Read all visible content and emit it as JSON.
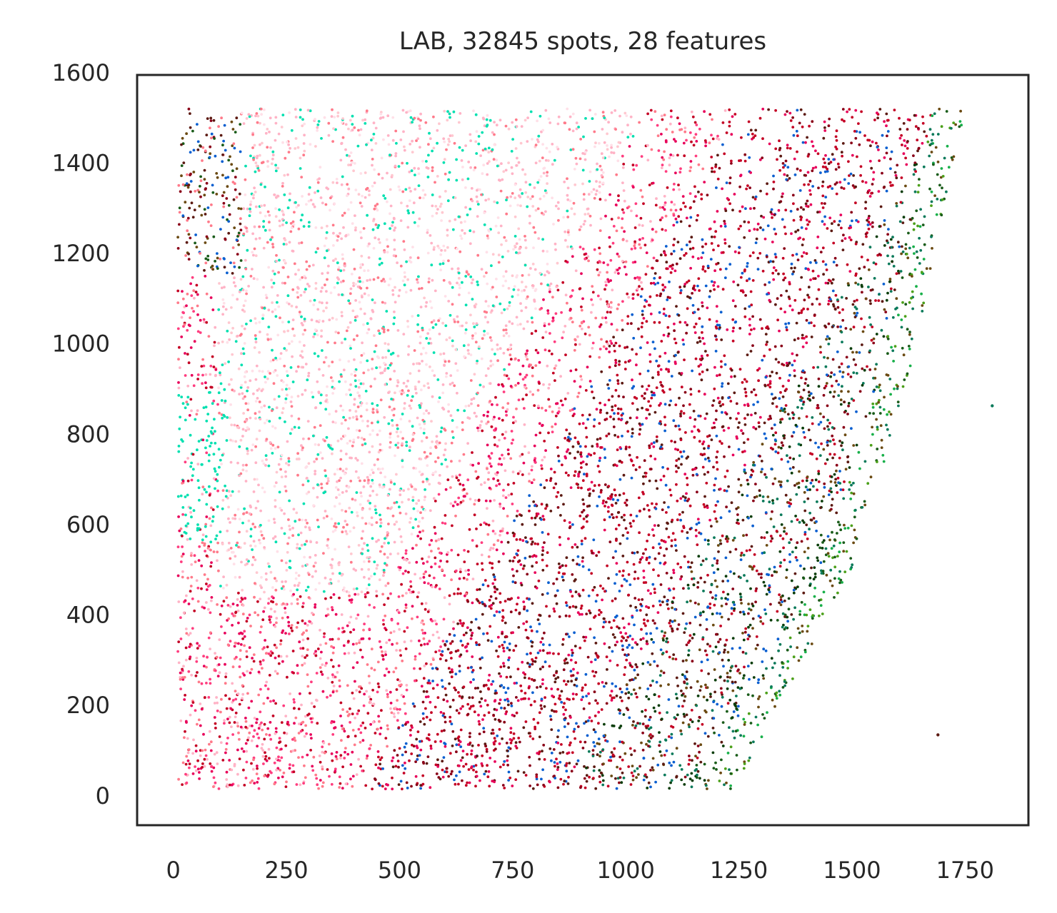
{
  "chart_data": {
    "type": "scatter",
    "title": "LAB, 32845 spots, 28 features",
    "xlabel": "",
    "ylabel": "",
    "xlim": [
      -80,
      1890
    ],
    "ylim": [
      -65,
      1595
    ],
    "xticks": [
      0,
      250,
      500,
      750,
      1000,
      1250,
      1500,
      1750
    ],
    "yticks": [
      0,
      200,
      400,
      600,
      800,
      1000,
      1200,
      1400,
      1600
    ],
    "grid": false,
    "legend": "none",
    "n_spots": 32845,
    "n_features": 28,
    "point_colors": {
      "teal": "#00e0b0",
      "light_pink": "#ffb3c6",
      "salmon": "#ff7a8a",
      "pink": "#ff3d7f",
      "magenta": "#e8005a",
      "crimson": "#c40024",
      "dark_red": "#8a0018",
      "maroon": "#5c1a12",
      "olive_brown": "#6b4a12",
      "blue": "#0a5fd0",
      "dark_green": "#0a3d0a",
      "forest_green": "#1a5c1a",
      "teal_green": "#0a7a5a",
      "lime_green": "#4ca01a",
      "bright_green": "#18b04a"
    },
    "outliers": [
      {
        "x": 1810,
        "y": 863
      },
      {
        "x": 1690,
        "y": 135
      }
    ]
  }
}
